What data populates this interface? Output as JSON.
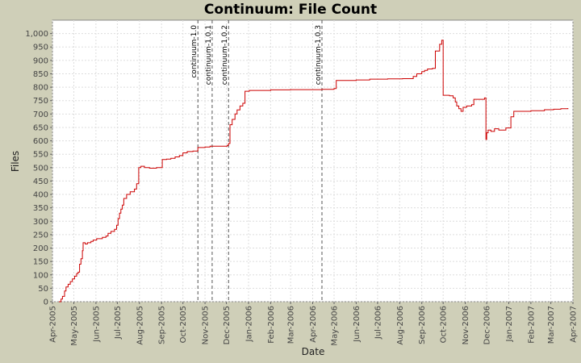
{
  "chart_data": {
    "type": "line",
    "title": "Continuum: File Count",
    "xlabel": "Date",
    "ylabel": "Files",
    "ylim": [
      0,
      1050
    ],
    "xlim": [
      "2005-04-01",
      "2007-04-01"
    ],
    "yticks": [
      0,
      50,
      100,
      150,
      200,
      250,
      300,
      350,
      400,
      450,
      500,
      550,
      600,
      650,
      700,
      750,
      800,
      850,
      900,
      950,
      1000
    ],
    "ytick_labels": [
      "0",
      "50",
      "100",
      "150",
      "200",
      "250",
      "300",
      "350",
      "400",
      "450",
      "500",
      "550",
      "600",
      "650",
      "700",
      "750",
      "800",
      "850",
      "900",
      "950",
      "1,000"
    ],
    "xticks": [
      {
        "date": "2005-04-01",
        "label": "Apr-2005"
      },
      {
        "date": "2005-05-01",
        "label": "May-2005"
      },
      {
        "date": "2005-06-01",
        "label": "Jun-2005"
      },
      {
        "date": "2005-07-01",
        "label": "Jul-2005"
      },
      {
        "date": "2005-08-01",
        "label": "Aug-2005"
      },
      {
        "date": "2005-09-01",
        "label": "Sep-2005"
      },
      {
        "date": "2005-10-01",
        "label": "Oct-2005"
      },
      {
        "date": "2005-11-01",
        "label": "Nov-2005"
      },
      {
        "date": "2005-12-01",
        "label": "Dec-2005"
      },
      {
        "date": "2006-01-01",
        "label": "Jan-2006"
      },
      {
        "date": "2006-02-01",
        "label": "Feb-2006"
      },
      {
        "date": "2006-03-01",
        "label": "Mar-2006"
      },
      {
        "date": "2006-04-01",
        "label": "Apr-2006"
      },
      {
        "date": "2006-05-01",
        "label": "May-2006"
      },
      {
        "date": "2006-06-01",
        "label": "Jun-2006"
      },
      {
        "date": "2006-07-01",
        "label": "Jul-2006"
      },
      {
        "date": "2006-08-01",
        "label": "Aug-2006"
      },
      {
        "date": "2006-09-01",
        "label": "Sep-2006"
      },
      {
        "date": "2006-10-01",
        "label": "Oct-2006"
      },
      {
        "date": "2006-11-01",
        "label": "Nov-2006"
      },
      {
        "date": "2006-12-01",
        "label": "Dec-2006"
      },
      {
        "date": "2007-01-01",
        "label": "Jan-2007"
      },
      {
        "date": "2007-02-01",
        "label": "Feb-2007"
      },
      {
        "date": "2007-03-01",
        "label": "Mar-2007"
      },
      {
        "date": "2007-04-01",
        "label": "Apr-2007"
      }
    ],
    "grid": true,
    "markers": [
      {
        "label": "continuum-1.0",
        "date": "2005-10-22"
      },
      {
        "label": "continuum-1.0.1",
        "date": "2005-11-11"
      },
      {
        "label": "continuum-1.0.2",
        "date": "2005-12-04"
      },
      {
        "label": "continuum-1.0.3",
        "date": "2006-04-14"
      }
    ],
    "series": [
      {
        "color": "#cc0000",
        "points": [
          [
            "2005-04-10",
            0
          ],
          [
            "2005-04-13",
            10
          ],
          [
            "2005-04-15",
            20
          ],
          [
            "2005-04-18",
            40
          ],
          [
            "2005-04-20",
            55
          ],
          [
            "2005-04-23",
            65
          ],
          [
            "2005-04-26",
            75
          ],
          [
            "2005-04-29",
            85
          ],
          [
            "2005-05-02",
            95
          ],
          [
            "2005-05-05",
            105
          ],
          [
            "2005-05-07",
            110
          ],
          [
            "2005-05-09",
            140
          ],
          [
            "2005-05-11",
            160
          ],
          [
            "2005-05-13",
            190
          ],
          [
            "2005-05-14",
            220
          ],
          [
            "2005-05-17",
            215
          ],
          [
            "2005-05-20",
            220
          ],
          [
            "2005-05-25",
            225
          ],
          [
            "2005-05-28",
            230
          ],
          [
            "2005-06-02",
            235
          ],
          [
            "2005-06-10",
            240
          ],
          [
            "2005-06-15",
            245
          ],
          [
            "2005-06-18",
            255
          ],
          [
            "2005-06-22",
            262
          ],
          [
            "2005-06-27",
            270
          ],
          [
            "2005-06-30",
            285
          ],
          [
            "2005-07-02",
            310
          ],
          [
            "2005-07-04",
            330
          ],
          [
            "2005-07-06",
            345
          ],
          [
            "2005-07-08",
            360
          ],
          [
            "2005-07-10",
            385
          ],
          [
            "2005-07-14",
            400
          ],
          [
            "2005-07-19",
            410
          ],
          [
            "2005-07-25",
            420
          ],
          [
            "2005-07-28",
            440
          ],
          [
            "2005-07-31",
            500
          ],
          [
            "2005-08-03",
            505
          ],
          [
            "2005-08-08",
            500
          ],
          [
            "2005-08-15",
            498
          ],
          [
            "2005-08-25",
            500
          ],
          [
            "2005-09-02",
            530
          ],
          [
            "2005-09-08",
            532
          ],
          [
            "2005-09-14",
            535
          ],
          [
            "2005-09-20",
            540
          ],
          [
            "2005-09-26",
            545
          ],
          [
            "2005-10-01",
            555
          ],
          [
            "2005-10-07",
            560
          ],
          [
            "2005-10-15",
            562
          ],
          [
            "2005-10-22",
            575
          ],
          [
            "2005-11-01",
            577
          ],
          [
            "2005-11-08",
            580
          ],
          [
            "2005-11-20",
            580
          ],
          [
            "2005-12-02",
            583
          ],
          [
            "2005-12-04",
            590
          ],
          [
            "2005-12-06",
            660
          ],
          [
            "2005-12-09",
            680
          ],
          [
            "2005-12-13",
            700
          ],
          [
            "2005-12-16",
            715
          ],
          [
            "2005-12-20",
            730
          ],
          [
            "2005-12-24",
            740
          ],
          [
            "2005-12-27",
            785
          ],
          [
            "2006-01-02",
            788
          ],
          [
            "2006-02-01",
            790
          ],
          [
            "2006-03-01",
            791
          ],
          [
            "2006-04-14",
            792
          ],
          [
            "2006-05-01",
            795
          ],
          [
            "2006-05-04",
            825
          ],
          [
            "2006-06-01",
            827
          ],
          [
            "2006-06-20",
            830
          ],
          [
            "2006-07-15",
            831
          ],
          [
            "2006-08-05",
            832
          ],
          [
            "2006-08-20",
            840
          ],
          [
            "2006-08-25",
            850
          ],
          [
            "2006-09-01",
            858
          ],
          [
            "2006-09-05",
            863
          ],
          [
            "2006-09-09",
            868
          ],
          [
            "2006-09-16",
            870
          ],
          [
            "2006-09-20",
            935
          ],
          [
            "2006-09-26",
            960
          ],
          [
            "2006-09-29",
            975
          ],
          [
            "2006-10-01",
            770
          ],
          [
            "2006-10-10",
            768
          ],
          [
            "2006-10-15",
            760
          ],
          [
            "2006-10-18",
            745
          ],
          [
            "2006-10-20",
            730
          ],
          [
            "2006-10-23",
            720
          ],
          [
            "2006-10-26",
            710
          ],
          [
            "2006-10-29",
            725
          ],
          [
            "2006-11-03",
            730
          ],
          [
            "2006-11-10",
            735
          ],
          [
            "2006-11-13",
            755
          ],
          [
            "2006-11-20",
            755
          ],
          [
            "2006-11-28",
            760
          ],
          [
            "2006-11-30",
            605
          ],
          [
            "2006-12-01",
            630
          ],
          [
            "2006-12-03",
            640
          ],
          [
            "2006-12-07",
            635
          ],
          [
            "2006-12-12",
            645
          ],
          [
            "2006-12-18",
            640
          ],
          [
            "2006-12-28",
            648
          ],
          [
            "2007-01-04",
            690
          ],
          [
            "2007-01-08",
            710
          ],
          [
            "2007-02-01",
            712
          ],
          [
            "2007-02-20",
            716
          ],
          [
            "2007-03-05",
            718
          ],
          [
            "2007-03-15",
            720
          ],
          [
            "2007-03-25",
            722
          ]
        ]
      }
    ]
  }
}
